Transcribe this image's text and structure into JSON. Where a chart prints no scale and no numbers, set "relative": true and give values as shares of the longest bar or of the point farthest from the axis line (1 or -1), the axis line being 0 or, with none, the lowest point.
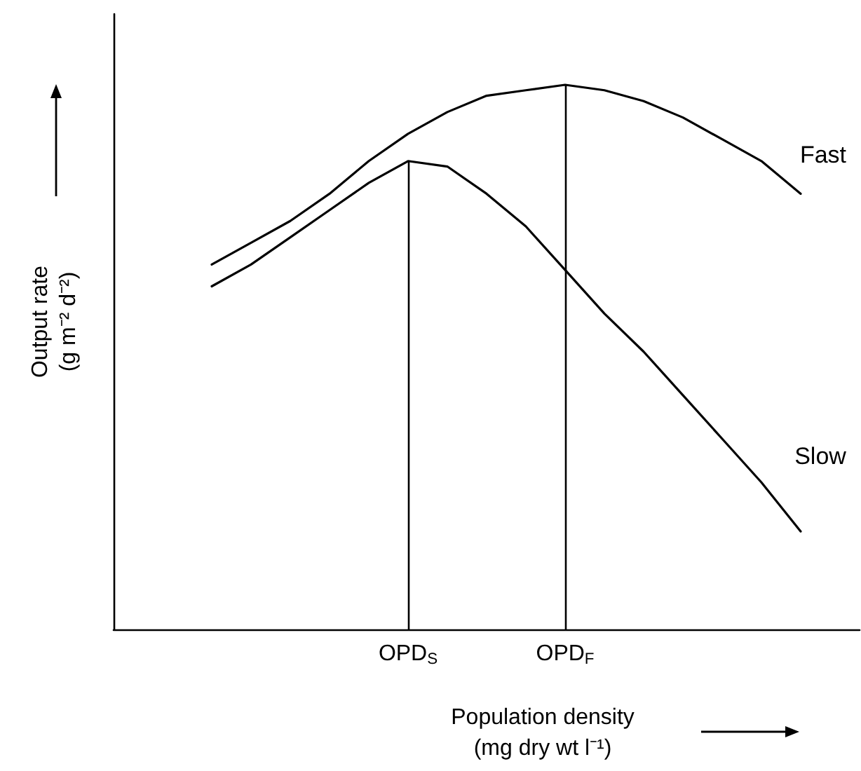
{
  "chart_data": {
    "type": "line",
    "relative": true,
    "xlabel": "Population density\n(mg dry wt l⁻¹)",
    "ylabel": "Output rate\n(g m⁻² d⁻²)",
    "categories": [
      null,
      null,
      null,
      null,
      null,
      null,
      null,
      "OPD$_{S}$",
      null,
      null,
      null,
      "OPD$_{F}$",
      null,
      null,
      null,
      null,
      null,
      null,
      null
    ],
    "series": [
      {
        "name": "Fast",
        "color": "#000000",
        "values": [
          null,
          null,
          0.67,
          0.71,
          0.75,
          0.8,
          0.86,
          0.91,
          0.95,
          0.98,
          0.99,
          1,
          0.99,
          0.97,
          0.94,
          0.9,
          0.86,
          0.8,
          null
        ]
      },
      {
        "name": "Slow",
        "color": "#000000",
        "values": [
          null,
          null,
          0.63,
          0.67,
          0.72,
          0.77,
          0.82,
          0.86,
          0.85,
          0.8,
          0.74,
          0.66,
          0.58,
          0.51,
          0.43,
          0.35,
          0.27,
          0.18,
          null
        ]
      }
    ],
    "ref_lines": [
      {
        "axis": "x",
        "value": "OPD$_{S}$",
        "color": "#000000"
      },
      {
        "axis": "x",
        "value": "OPD$_{F}$",
        "color": "#000000"
      }
    ],
    "grid": false,
    "legend": false,
    "marker": "none",
    "line_style": "solid"
  }
}
